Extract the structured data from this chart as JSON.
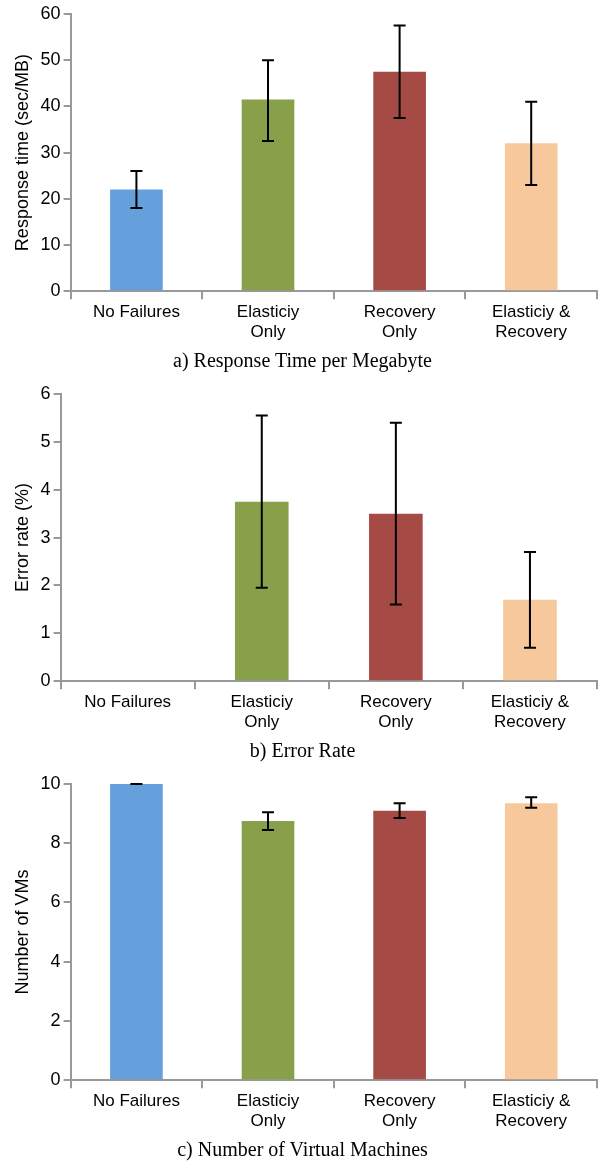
{
  "chart_data": [
    {
      "type": "bar",
      "title": "a) Response Time per Megabyte",
      "ylabel": "Response time (sec/MB)",
      "categories": [
        "No Failures",
        "Elasticiy Only",
        "Recovery Only",
        "Elasticiy & Recovery"
      ],
      "values": [
        22,
        41.5,
        47.5,
        32
      ],
      "errors": [
        [
          18,
          26
        ],
        [
          32.5,
          50
        ],
        [
          37.5,
          57.5
        ],
        [
          23,
          41
        ]
      ],
      "colors": [
        "#659fdc",
        "#89a04b",
        "#a54a45",
        "#f8c89d"
      ],
      "ylim": [
        0,
        60
      ],
      "yticks": [
        0,
        10,
        20,
        30,
        40,
        50,
        60
      ],
      "grid": false,
      "legend": false
    },
    {
      "type": "bar",
      "title": "b) Error Rate",
      "ylabel": "Error rate (%)",
      "categories": [
        "No Failures",
        "Elasticiy Only",
        "Recovery Only",
        "Elasticiy & Recovery"
      ],
      "values": [
        0,
        3.75,
        3.5,
        1.7
      ],
      "errors": [
        null,
        [
          1.95,
          5.55
        ],
        [
          1.6,
          5.4
        ],
        [
          0.7,
          2.7
        ]
      ],
      "colors": [
        "#659fdc",
        "#89a04b",
        "#a54a45",
        "#f8c89d"
      ],
      "ylim": [
        0,
        6
      ],
      "yticks": [
        0,
        1,
        2,
        3,
        4,
        5,
        6
      ],
      "grid": false,
      "legend": false
    },
    {
      "type": "bar",
      "title": "c) Number of Virtual Machines",
      "ylabel": "Number of VMs",
      "categories": [
        "No Failures",
        "Elasticiy Only",
        "Recovery Only",
        "Elasticiy & Recovery"
      ],
      "values": [
        10,
        8.75,
        9.1,
        9.35
      ],
      "errors": [
        0,
        [
          8.45,
          9.05
        ],
        [
          8.85,
          9.35
        ],
        [
          9.2,
          9.55
        ]
      ],
      "colors": [
        "#659fdc",
        "#89a04b",
        "#a54a45",
        "#f8c89d"
      ],
      "ylim": [
        0,
        10
      ],
      "yticks": [
        0,
        2,
        4,
        6,
        8,
        10
      ],
      "grid": false,
      "legend": false
    }
  ]
}
